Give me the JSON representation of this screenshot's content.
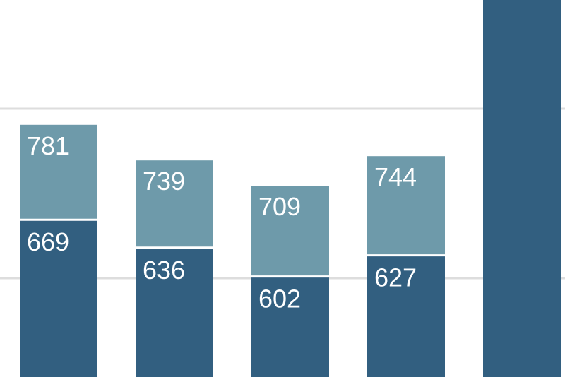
{
  "chart_data": {
    "type": "bar",
    "stacked": false,
    "overlapping": true,
    "categories": [
      "",
      "",
      "",
      "",
      ""
    ],
    "series": [
      {
        "values": [
          781,
          739,
          709,
          744,
          null
        ],
        "color": "#6e9aaa"
      },
      {
        "values": [
          669,
          636,
          602,
          627,
          null
        ],
        "color": "#325f80"
      }
    ],
    "labels": {
      "light": [
        "781",
        "739",
        "709",
        "744",
        ""
      ],
      "dark": [
        "669",
        "636",
        "602",
        "627",
        ""
      ]
    },
    "grid": true,
    "gridline_values": [
      1000,
      800,
      600
    ],
    "colors": {
      "grid": "#dddddd",
      "separator": "#ffffff",
      "background": "#ffffff"
    },
    "title": "",
    "xlabel": "",
    "ylabel": ""
  }
}
